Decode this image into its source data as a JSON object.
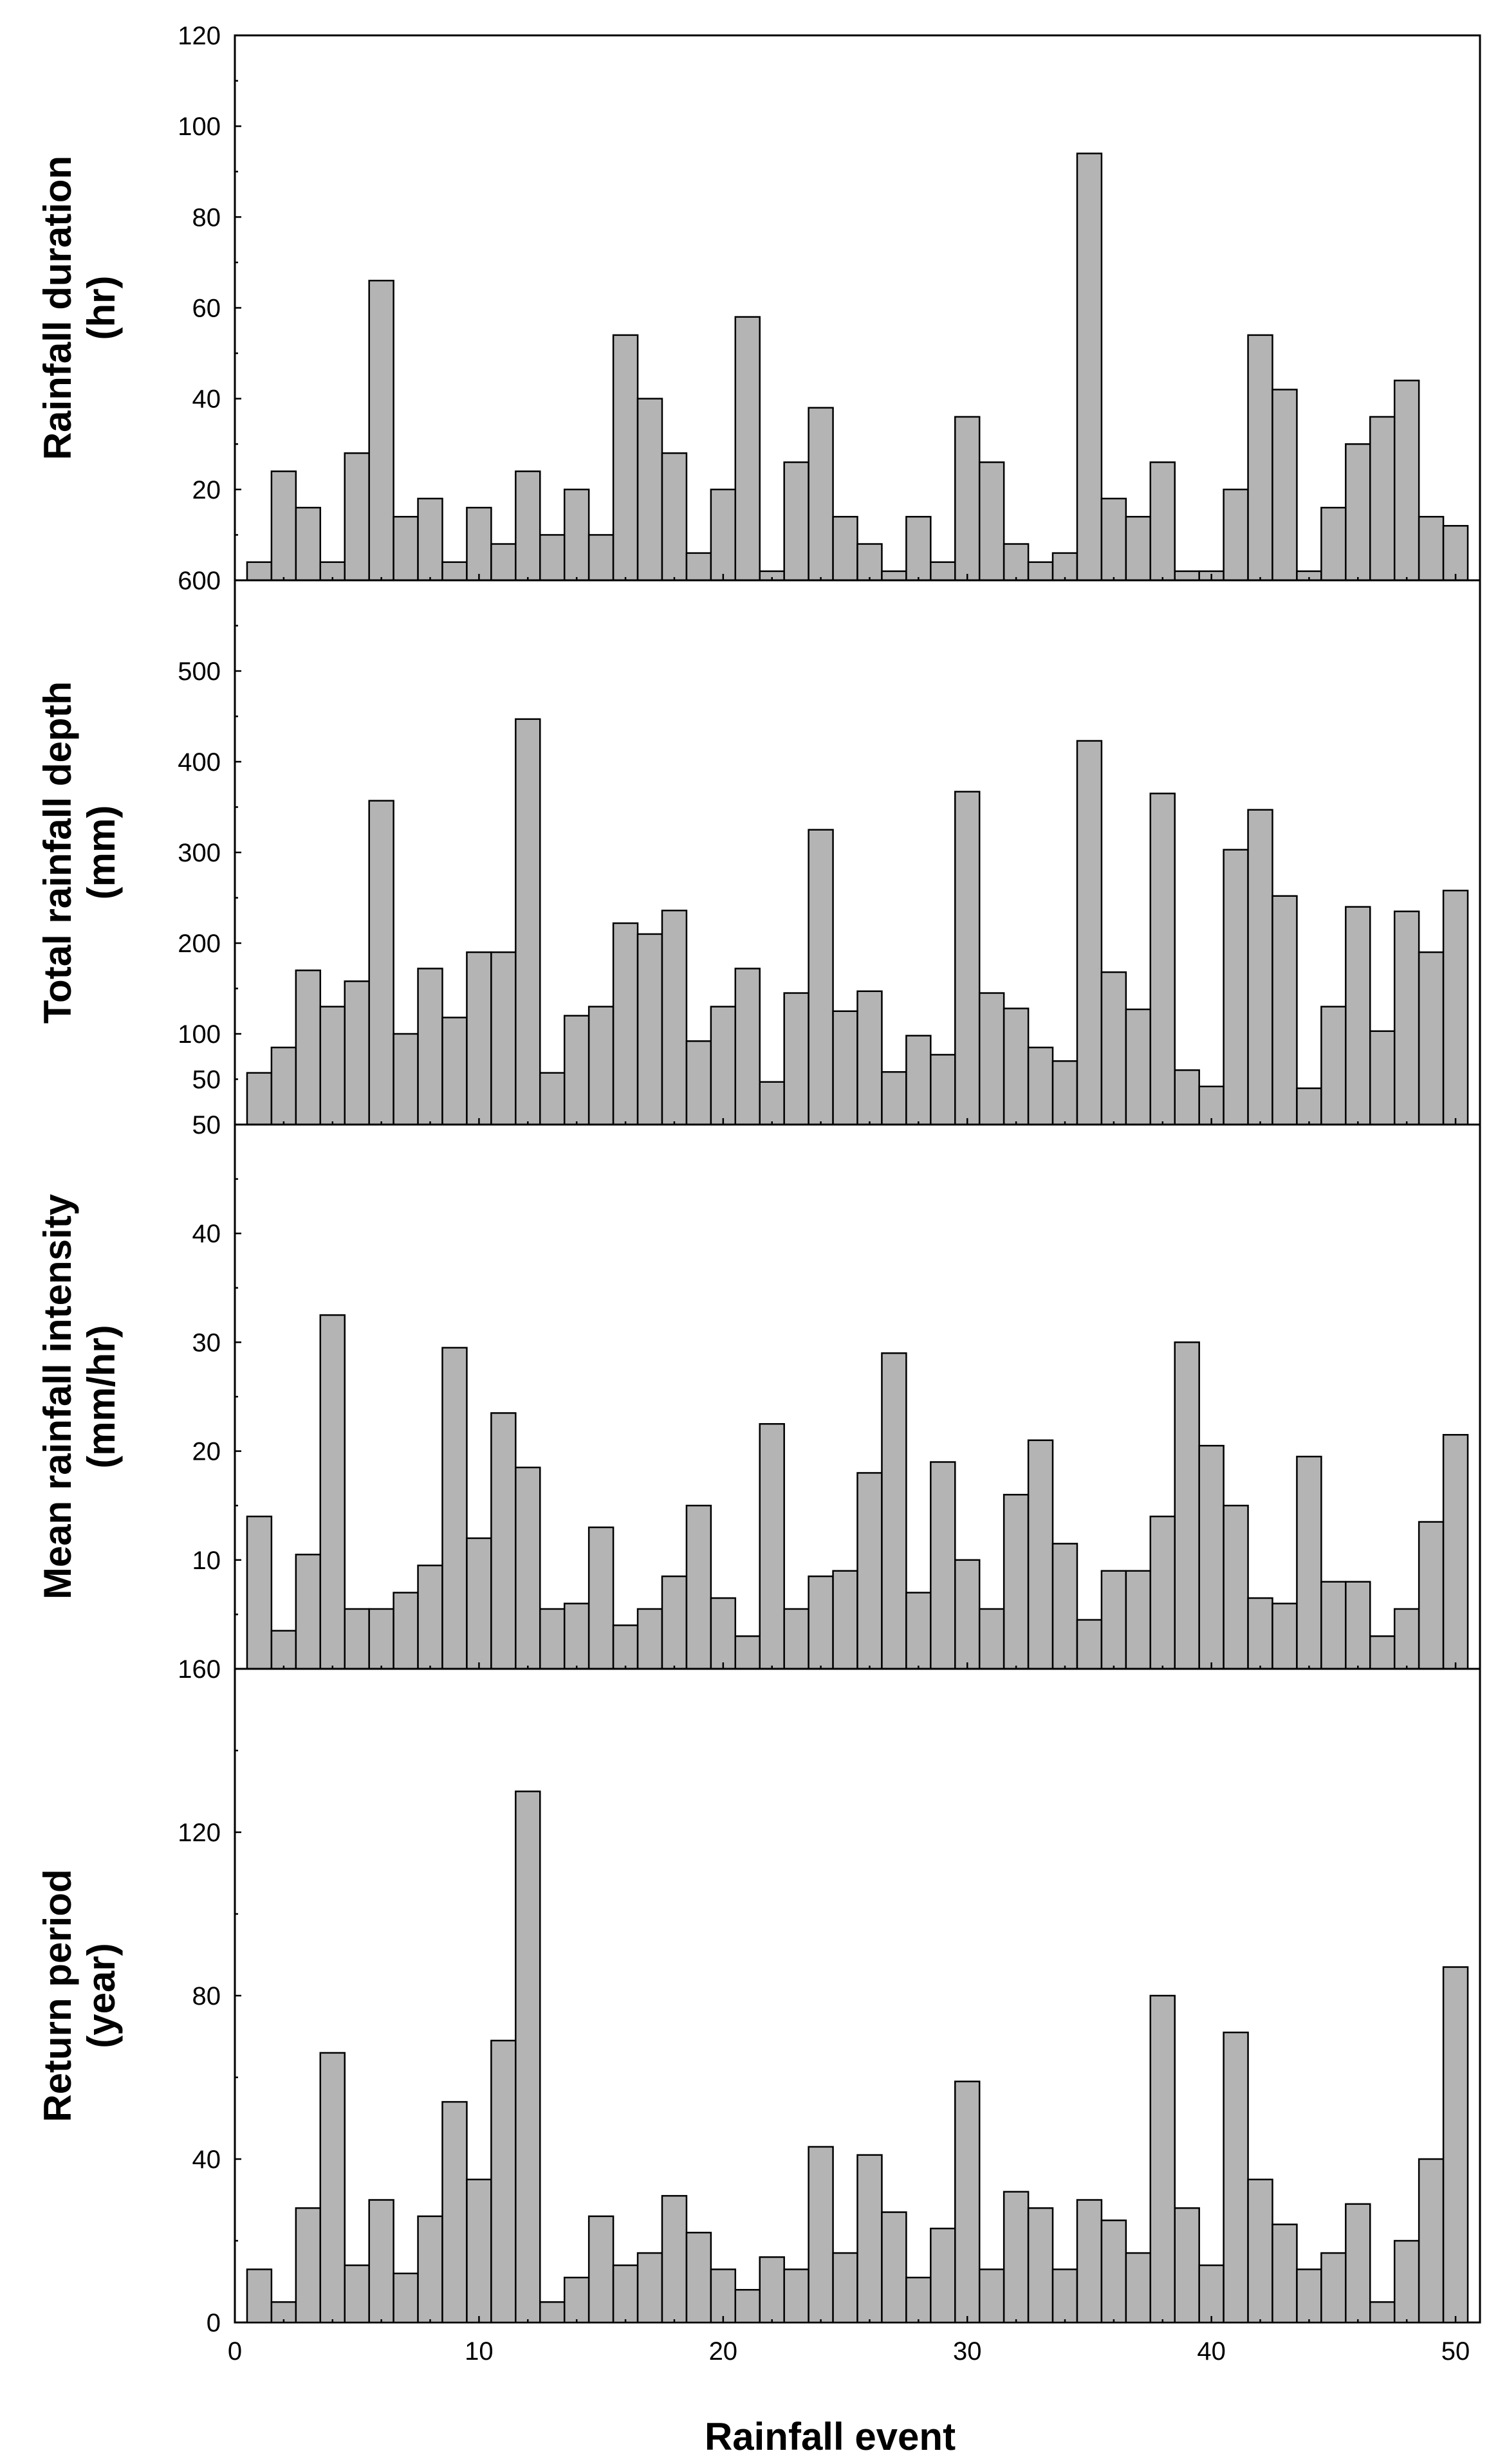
{
  "chart_data": [
    {
      "type": "bar",
      "ylabel": "Rainfall duration",
      "ylabel_unit": "(hr)",
      "ylim": [
        0,
        120
      ],
      "yticks": [
        20,
        40,
        60,
        80,
        100,
        120
      ],
      "x": [
        1,
        2,
        3,
        4,
        5,
        6,
        7,
        8,
        9,
        10,
        11,
        12,
        13,
        14,
        15,
        16,
        17,
        18,
        19,
        20,
        21,
        22,
        23,
        24,
        25,
        26,
        27,
        28,
        29,
        30,
        31,
        32,
        33,
        34,
        35,
        36,
        37,
        38,
        39,
        40,
        41,
        42,
        43,
        44,
        45,
        46,
        47,
        48,
        49,
        50
      ],
      "values": [
        4,
        24,
        16,
        4,
        28,
        66,
        14,
        18,
        4,
        16,
        8,
        24,
        10,
        20,
        10,
        54,
        40,
        28,
        6,
        20,
        58,
        2,
        26,
        38,
        14,
        8,
        2,
        14,
        4,
        36,
        26,
        8,
        4,
        6,
        94,
        18,
        14,
        26,
        2,
        2,
        20,
        54,
        42,
        2,
        16,
        30,
        36,
        44,
        14,
        12
      ],
      "xlim": [
        0,
        51
      ]
    },
    {
      "type": "bar",
      "ylabel": "Total rainfall depth",
      "ylabel_unit": "(mm)",
      "ylim": [
        0,
        600
      ],
      "yticks": [
        50,
        100,
        200,
        300,
        400,
        500,
        600
      ],
      "x": [
        1,
        2,
        3,
        4,
        5,
        6,
        7,
        8,
        9,
        10,
        11,
        12,
        13,
        14,
        15,
        16,
        17,
        18,
        19,
        20,
        21,
        22,
        23,
        24,
        25,
        26,
        27,
        28,
        29,
        30,
        31,
        32,
        33,
        34,
        35,
        36,
        37,
        38,
        39,
        40,
        41,
        42,
        43,
        44,
        45,
        46,
        47,
        48,
        49,
        50
      ],
      "values": [
        57,
        85,
        170,
        130,
        158,
        357,
        100,
        172,
        118,
        190,
        190,
        447,
        57,
        120,
        130,
        222,
        210,
        236,
        92,
        130,
        172,
        47,
        145,
        325,
        125,
        147,
        58,
        98,
        77,
        367,
        145,
        128,
        85,
        70,
        423,
        168,
        127,
        365,
        60,
        42,
        303,
        347,
        252,
        40,
        130,
        240,
        103,
        235,
        190,
        258
      ],
      "xlim": [
        0,
        51
      ]
    },
    {
      "type": "bar",
      "ylabel": "Mean rainfall intensity",
      "ylabel_unit": "(mm/hr)",
      "ylim": [
        0,
        50
      ],
      "yticks": [
        10,
        20,
        30,
        40,
        50
      ],
      "x": [
        1,
        2,
        3,
        4,
        5,
        6,
        7,
        8,
        9,
        10,
        11,
        12,
        13,
        14,
        15,
        16,
        17,
        18,
        19,
        20,
        21,
        22,
        23,
        24,
        25,
        26,
        27,
        28,
        29,
        30,
        31,
        32,
        33,
        34,
        35,
        36,
        37,
        38,
        39,
        40,
        41,
        42,
        43,
        44,
        45,
        46,
        47,
        48,
        49,
        50
      ],
      "values": [
        14,
        3.5,
        10.5,
        32.5,
        5.5,
        5.5,
        7,
        9.5,
        29.5,
        12,
        23.5,
        18.5,
        5.5,
        6,
        13,
        4,
        5.5,
        8.5,
        15,
        6.5,
        3,
        22.5,
        5.5,
        8.5,
        9,
        18,
        29,
        7,
        19,
        10,
        5.5,
        16,
        21,
        11.5,
        4.5,
        9,
        9,
        14,
        30,
        20.5,
        15,
        6.5,
        6,
        19.5,
        8,
        8,
        3,
        5.5,
        13.5,
        21.5
      ],
      "xlim": [
        0,
        51
      ]
    },
    {
      "type": "bar",
      "ylabel": "Return period",
      "ylabel_unit": "(year)",
      "ylim": [
        0,
        160
      ],
      "yticks": [
        0,
        40,
        80,
        120,
        160
      ],
      "x": [
        1,
        2,
        3,
        4,
        5,
        6,
        7,
        8,
        9,
        10,
        11,
        12,
        13,
        14,
        15,
        16,
        17,
        18,
        19,
        20,
        21,
        22,
        23,
        24,
        25,
        26,
        27,
        28,
        29,
        30,
        31,
        32,
        33,
        34,
        35,
        36,
        37,
        38,
        39,
        40,
        41,
        42,
        43,
        44,
        45,
        46,
        47,
        48,
        49,
        50
      ],
      "values": [
        13,
        5,
        28,
        66,
        14,
        30,
        12,
        26,
        54,
        35,
        69,
        130,
        5,
        11,
        26,
        14,
        17,
        31,
        22,
        13,
        8,
        16,
        13,
        43,
        17,
        41,
        27,
        11,
        23,
        59,
        13,
        32,
        28,
        13,
        30,
        25,
        17,
        80,
        28,
        14,
        71,
        35,
        24,
        13,
        17,
        29,
        5,
        20,
        40,
        87
      ],
      "xlim": [
        0,
        51
      ],
      "xticks": [
        0,
        10,
        20,
        30,
        40,
        50
      ],
      "xlabel": "Rainfall event"
    }
  ],
  "colors": {
    "bar_fill": "#b4b4b4",
    "bar_stroke": "#000000",
    "frame": "#000000"
  }
}
